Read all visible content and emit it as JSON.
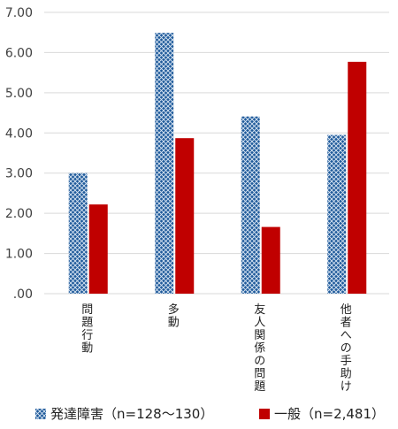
{
  "chart_data": {
    "type": "bar",
    "categories": [
      "問題行動",
      "多動",
      "友人関係の問題",
      "他者への手助け"
    ],
    "category_label_lines": [
      [
        "問",
        "題",
        "行",
        "動"
      ],
      [
        "多",
        "動"
      ],
      [
        "友",
        "人",
        "関",
        "係",
        "の",
        "問",
        "題"
      ],
      [
        "他",
        "者",
        "へ",
        "の",
        "手",
        "助",
        "け"
      ]
    ],
    "series": [
      {
        "name": "発達障害（n=128〜130）",
        "values": [
          3.0,
          6.49,
          4.41,
          3.95
        ],
        "color": "#1f5a9a",
        "pattern": "crosshatch"
      },
      {
        "name": "一般（n=2,481）",
        "values": [
          2.22,
          3.87,
          1.66,
          5.77
        ],
        "color": "#c00000",
        "pattern": "solid"
      }
    ],
    "yticks": [
      "7.00",
      "6.00",
      "5.00",
      "4.00",
      "3.00",
      "2.00",
      "1.00",
      ".00"
    ],
    "ylim": [
      0,
      7
    ],
    "grid": true,
    "legend_position": "bottom"
  }
}
